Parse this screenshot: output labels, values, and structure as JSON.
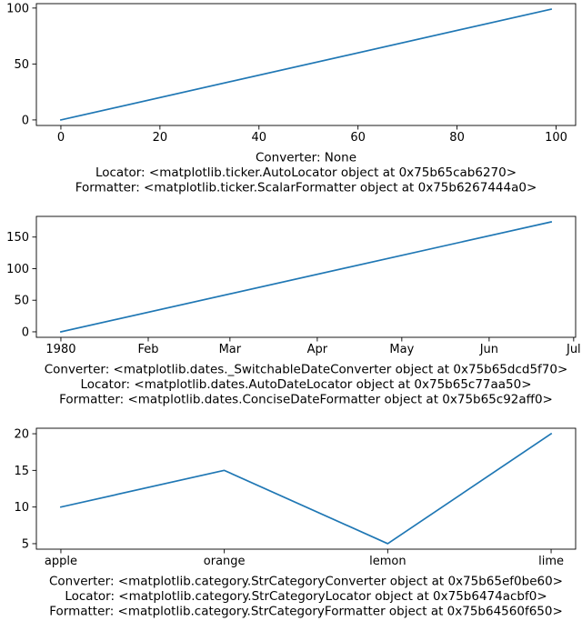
{
  "colors": {
    "line": "#1f77b4",
    "axes": "#000000",
    "background": "#ffffff"
  },
  "chart_data": [
    {
      "type": "line",
      "xlabel_lines": [
        "Converter: None",
        "Locator: <matplotlib.ticker.AutoLocator object at 0x75b65cab6270>",
        "Formatter: <matplotlib.ticker.ScalarFormatter object at 0x75b6267444a0>"
      ],
      "xlim": [
        -4.95,
        103.95
      ],
      "ylim": [
        -4.95,
        103.95
      ],
      "x_ticks": [
        0,
        20,
        40,
        60,
        80,
        100
      ],
      "x_tick_labels": [
        "0",
        "20",
        "40",
        "60",
        "80",
        "100"
      ],
      "y_ticks": [
        0,
        50,
        100
      ],
      "y_tick_labels": [
        "0",
        "50",
        "100"
      ],
      "series": [
        {
          "name": "line",
          "x": [
            0,
            99
          ],
          "y": [
            0,
            99
          ]
        }
      ]
    },
    {
      "type": "line",
      "xlabel_lines": [
        "Converter: <matplotlib.dates._SwitchableDateConverter object at 0x75b65dcd5f70>",
        "Locator: <matplotlib.dates.AutoDateLocator object at 0x75b65c77aa50>",
        "Formatter: <matplotlib.dates.ConciseDateFormatter object at 0x75b65c92aff0>"
      ],
      "xlim": [
        -8.7,
        182.7
      ],
      "ylim": [
        -8.7,
        182.7
      ],
      "x_ticks": [
        0,
        31,
        60,
        91,
        121,
        152,
        182
      ],
      "x_tick_labels": [
        "1980",
        "Feb",
        "Mar",
        "Apr",
        "May",
        "Jun",
        "Jul"
      ],
      "y_ticks": [
        0,
        50,
        100,
        150
      ],
      "y_tick_labels": [
        "0",
        "50",
        "100",
        "150"
      ],
      "series": [
        {
          "name": "line",
          "x": [
            0,
            174
          ],
          "y": [
            0,
            174
          ]
        }
      ]
    },
    {
      "type": "line",
      "xlabel_lines": [
        "Converter: <matplotlib.category.StrCategoryConverter object at 0x75b65ef0be60>",
        "Locator: <matplotlib.category.StrCategoryLocator object at 0x75b6474acbf0>",
        "Formatter: <matplotlib.category.StrCategoryFormatter object at 0x75b64560f650>"
      ],
      "xlim": [
        -0.15,
        3.15
      ],
      "ylim": [
        4.25,
        20.75
      ],
      "x_ticks": [
        0,
        1,
        2,
        3
      ],
      "x_tick_labels": [
        "apple",
        "orange",
        "lemon",
        "lime"
      ],
      "y_ticks": [
        5,
        10,
        15,
        20
      ],
      "y_tick_labels": [
        "5",
        "10",
        "15",
        "20"
      ],
      "series": [
        {
          "name": "line",
          "x": [
            0,
            1,
            2,
            3
          ],
          "y": [
            10,
            15,
            5,
            20
          ]
        }
      ]
    }
  ]
}
